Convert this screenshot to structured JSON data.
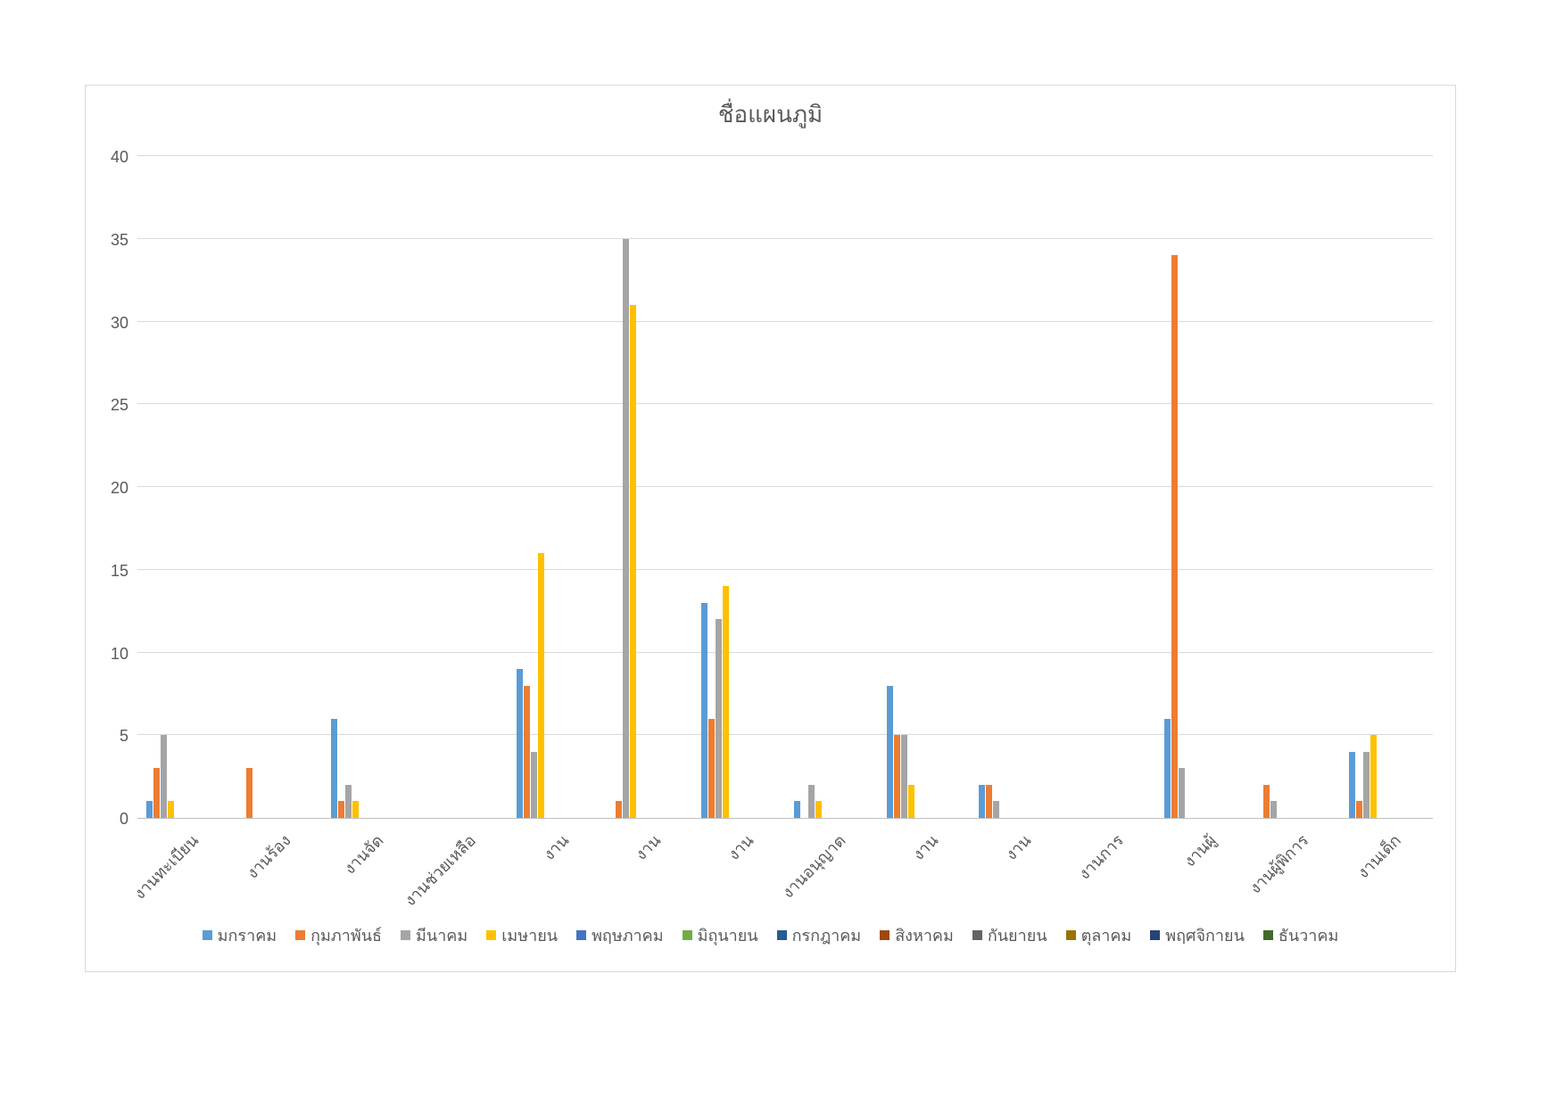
{
  "chart_data": {
    "type": "bar",
    "title": "ชื่อแผนภูมิ",
    "xlabel": "",
    "ylabel": "",
    "ylim": [
      0,
      40
    ],
    "ytick_step": 5,
    "yticks": [
      0,
      5,
      10,
      15,
      20,
      25,
      30,
      35,
      40
    ],
    "grid": true,
    "legend_position": "bottom",
    "categories": [
      "งานทะเบียน",
      "งานร้อง",
      "งานจัด",
      "งานช่วยเหลือ",
      "งาน",
      "งาน",
      "งาน",
      "งานอนุญาต",
      "งาน",
      "งาน",
      "งานการ",
      "งานผู้",
      "งานผู้พิการ",
      "งานเด็ก"
    ],
    "series": [
      {
        "name": "มกราคม",
        "color": "#5B9BD5",
        "values": [
          1,
          0,
          6,
          0,
          9,
          0,
          13,
          1,
          8,
          2,
          0,
          6,
          0,
          4
        ]
      },
      {
        "name": "กุมภาพันธ์",
        "color": "#ED7D31",
        "values": [
          3,
          3,
          1,
          0,
          8,
          1,
          6,
          0,
          5,
          2,
          0,
          34,
          2,
          1
        ]
      },
      {
        "name": "มีนาคม",
        "color": "#A5A5A5",
        "values": [
          5,
          0,
          2,
          0,
          4,
          35,
          12,
          2,
          5,
          1,
          0,
          3,
          1,
          4
        ]
      },
      {
        "name": "เมษายน",
        "color": "#FFC000",
        "values": [
          1,
          0,
          1,
          0,
          16,
          31,
          14,
          1,
          2,
          0,
          0,
          0,
          0,
          5
        ]
      },
      {
        "name": "พฤษภาคม",
        "color": "#4472C4",
        "values": [
          0,
          0,
          0,
          0,
          0,
          0,
          0,
          0,
          0,
          0,
          0,
          0,
          0,
          0
        ]
      },
      {
        "name": "มิถุนายน",
        "color": "#70AD47",
        "values": [
          0,
          0,
          0,
          0,
          0,
          0,
          0,
          0,
          0,
          0,
          0,
          0,
          0,
          0
        ]
      },
      {
        "name": "กรกฎาคม",
        "color": "#255E91",
        "values": [
          0,
          0,
          0,
          0,
          0,
          0,
          0,
          0,
          0,
          0,
          0,
          0,
          0,
          0
        ]
      },
      {
        "name": "สิงหาคม",
        "color": "#9E480E",
        "values": [
          0,
          0,
          0,
          0,
          0,
          0,
          0,
          0,
          0,
          0,
          0,
          0,
          0,
          0
        ]
      },
      {
        "name": "กันยายน",
        "color": "#636363",
        "values": [
          0,
          0,
          0,
          0,
          0,
          0,
          0,
          0,
          0,
          0,
          0,
          0,
          0,
          0
        ]
      },
      {
        "name": "ตุลาคม",
        "color": "#997300",
        "values": [
          0,
          0,
          0,
          0,
          0,
          0,
          0,
          0,
          0,
          0,
          0,
          0,
          0,
          0
        ]
      },
      {
        "name": "พฤศจิกายน",
        "color": "#264478",
        "values": [
          0,
          0,
          0,
          0,
          0,
          0,
          0,
          0,
          0,
          0,
          0,
          0,
          0,
          0
        ]
      },
      {
        "name": "ธันวาคม",
        "color": "#43682B",
        "values": [
          0,
          0,
          0,
          0,
          0,
          0,
          0,
          0,
          0,
          0,
          0,
          0,
          0,
          0
        ]
      }
    ]
  }
}
